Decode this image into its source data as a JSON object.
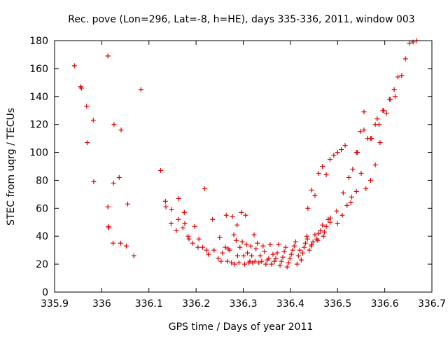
{
  "chart_data": {
    "type": "scatter",
    "title": "Rec. pove (Lon=296, Lat=-8, h=HE), days 335-336, 2011, window 003",
    "xlabel": "GPS time / Days of year 2011",
    "ylabel": "STEC from uqrg / TECUs",
    "xlim": [
      335.9,
      336.7
    ],
    "ylim": [
      0,
      180
    ],
    "xticks": [
      335.9,
      336,
      336.1,
      336.2,
      336.3,
      336.4,
      336.5,
      336.6,
      336.7
    ],
    "xtick_labels": [
      "335.9",
      "336",
      "336.1",
      "336.2",
      "336.3",
      "336.4",
      "336.5",
      "336.6",
      "336.7"
    ],
    "yticks": [
      0,
      20,
      40,
      60,
      80,
      100,
      120,
      140,
      160,
      180
    ],
    "ytick_labels": [
      "0",
      "20",
      "40",
      "60",
      "80",
      "100",
      "120",
      "140",
      "160",
      "180"
    ],
    "grid": false,
    "marker": "+",
    "color": "#e00000",
    "series": [
      {
        "name": "STEC",
        "x": [
          335.942,
          335.955,
          335.957,
          335.968,
          335.969,
          335.982,
          335.983,
          336.013,
          336.013,
          336.014,
          336.015,
          336.024,
          336.025,
          336.026,
          336.037,
          336.04,
          336.041,
          336.052,
          336.055,
          336.068,
          336.083,
          336.125,
          336.135,
          336.136,
          336.147,
          336.148,
          336.158,
          336.162,
          336.163,
          336.172,
          336.175,
          336.176,
          336.183,
          336.185,
          336.193,
          336.197,
          336.204,
          336.206,
          336.214,
          336.218,
          336.222,
          336.226,
          336.235,
          336.238,
          336.247,
          336.25,
          336.253,
          336.256,
          336.262,
          336.264,
          336.266,
          336.268,
          336.271,
          336.275,
          336.277,
          336.28,
          336.282,
          336.285,
          336.287,
          336.288,
          336.291,
          336.293,
          336.296,
          336.298,
          336.301,
          336.303,
          336.305,
          336.307,
          336.309,
          336.312,
          336.314,
          336.316,
          336.318,
          336.32,
          336.323,
          336.325,
          336.327,
          336.33,
          336.333,
          336.336,
          336.339,
          336.342,
          336.345,
          336.348,
          336.351,
          336.354,
          336.357,
          336.36,
          336.363,
          336.366,
          336.369,
          336.372,
          336.375,
          336.378,
          336.381,
          336.384,
          336.387,
          336.39,
          336.393,
          336.396,
          336.399,
          336.402,
          336.405,
          336.408,
          336.411,
          336.414,
          336.417,
          336.42,
          336.423,
          336.426,
          336.429,
          336.432,
          336.436,
          336.44,
          336.444,
          336.448,
          336.452,
          336.456,
          336.46,
          336.464,
          336.468,
          336.472,
          336.476,
          336.48,
          336.484,
          336.437,
          336.445,
          336.452,
          336.46,
          336.468,
          336.476,
          336.484,
          336.492,
          336.5,
          336.508,
          336.516,
          336.524,
          336.532,
          336.54,
          336.548,
          336.556,
          336.564,
          336.572,
          336.58,
          336.588,
          336.596,
          336.604,
          336.612,
          336.62,
          336.628,
          336.636,
          336.644,
          336.652,
          336.66,
          336.668,
          336.5,
          336.51,
          336.52,
          336.53,
          336.54,
          336.55,
          336.56,
          336.57,
          336.58,
          336.59,
          336.598,
          336.61,
          336.622,
          336.435,
          336.445,
          336.458,
          336.47,
          336.485,
          336.498,
          336.512,
          336.528,
          336.542,
          336.556,
          336.57,
          336.584
        ],
        "y": [
          162,
          147,
          146,
          133,
          107,
          123,
          79,
          169,
          61,
          47,
          46,
          35,
          78,
          120,
          82,
          35,
          116,
          33,
          63,
          26,
          145,
          87,
          65,
          61,
          49,
          59,
          44,
          52,
          67,
          46,
          57,
          49,
          40,
          38,
          35,
          47,
          32,
          38,
          32,
          74,
          30,
          27,
          52,
          30,
          24,
          39,
          22,
          28,
          32,
          55,
          22,
          31,
          30,
          21,
          54,
          41,
          20,
          37,
          48,
          26,
          21,
          32,
          57,
          36,
          26,
          20,
          55,
          34,
          28,
          21,
          22,
          33,
          26,
          21,
          41,
          22,
          31,
          35,
          21,
          26,
          22,
          33,
          29,
          20,
          23,
          24,
          34,
          20,
          27,
          22,
          24,
          28,
          34,
          19,
          22,
          25,
          29,
          32,
          18,
          21,
          24,
          27,
          30,
          33,
          36,
          20,
          26,
          30,
          23,
          28,
          32,
          35,
          38,
          30,
          33,
          36,
          41,
          38,
          42,
          44,
          48,
          43,
          47,
          52,
          50,
          60,
          73,
          69,
          85,
          90,
          84,
          95,
          98,
          100,
          102,
          105,
          82,
          88,
          100,
          115,
          129,
          110,
          110,
          120,
          120,
          130,
          128,
          138,
          145,
          154,
          155,
          167,
          178,
          179,
          180,
          49,
          55,
          62,
          68,
          72,
          85,
          74,
          80,
          91,
          107,
          130,
          138,
          140,
          40,
          34,
          37,
          40,
          53,
          58,
          71,
          64,
          100,
          116,
          110,
          124
        ]
      }
    ]
  }
}
